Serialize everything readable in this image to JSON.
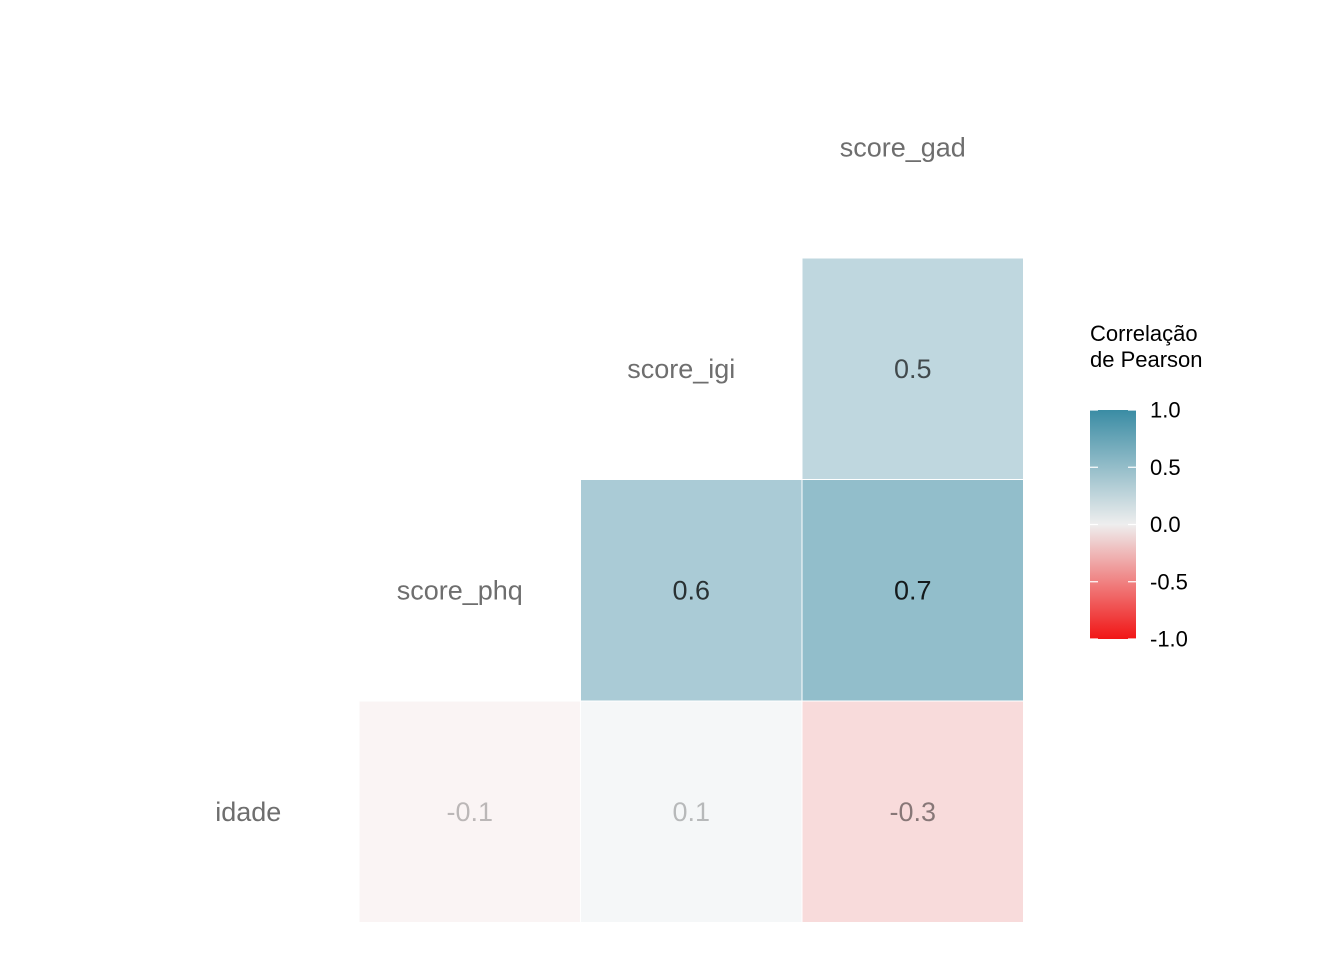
{
  "chart_data": {
    "type": "heatmap",
    "variables": [
      "idade",
      "score_phq",
      "score_igi",
      "score_gad"
    ],
    "cells": [
      {
        "row": "idade",
        "col": "score_phq",
        "value": -0.1
      },
      {
        "row": "idade",
        "col": "score_igi",
        "value": 0.1
      },
      {
        "row": "idade",
        "col": "score_gad",
        "value": -0.3
      },
      {
        "row": "score_phq",
        "col": "score_igi",
        "value": 0.6
      },
      {
        "row": "score_phq",
        "col": "score_gad",
        "value": 0.7
      },
      {
        "row": "score_igi",
        "col": "score_gad",
        "value": 0.5
      }
    ],
    "legend": {
      "title_lines": [
        "Correlação",
        "de Pearson"
      ],
      "ticks": [
        "1.0",
        "0.5",
        "0.0",
        "-0.5",
        "-1.0"
      ],
      "tick_values": [
        1.0,
        0.5,
        0.0,
        -0.5,
        -1.0
      ],
      "range": [
        -1,
        1
      ],
      "colors": {
        "low": "#f11515",
        "mid": "#eeeeee",
        "high": "#3a8ca4"
      },
      "placement": "right"
    },
    "grid": false
  }
}
